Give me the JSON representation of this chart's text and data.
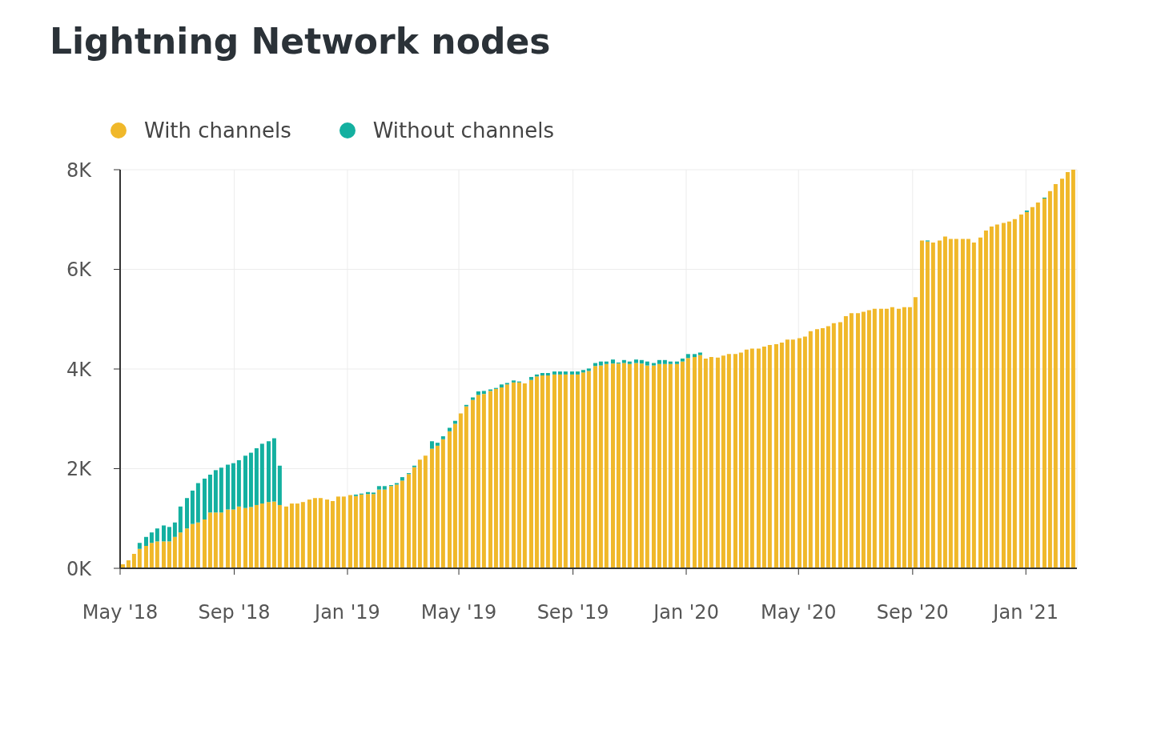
{
  "chart_data": {
    "type": "bar",
    "title": "Lightning Network nodes",
    "stacked": true,
    "grid": true,
    "legend": "top left",
    "x": [
      "2018-05-04",
      "2018-05-10",
      "2018-05-16",
      "2018-05-22",
      "2018-05-29",
      "2018-06-04",
      "2018-06-10",
      "2018-06-17",
      "2018-06-23",
      "2018-06-29",
      "2018-07-05",
      "2018-07-12",
      "2018-07-18",
      "2018-07-24",
      "2018-07-31",
      "2018-08-06",
      "2018-08-12",
      "2018-08-18",
      "2018-08-25",
      "2018-08-31",
      "2018-09-06",
      "2018-09-13",
      "2018-09-19",
      "2018-09-25",
      "2018-10-01",
      "2018-10-08",
      "2018-10-14",
      "2018-10-20",
      "2018-10-27",
      "2018-11-02",
      "2018-11-08",
      "2018-11-14",
      "2018-11-21",
      "2018-11-27",
      "2018-12-03",
      "2018-12-10",
      "2018-12-16",
      "2018-12-22",
      "2018-12-28",
      "2019-01-04",
      "2019-01-10",
      "2019-01-16",
      "2019-01-23",
      "2019-01-29",
      "2019-02-04",
      "2019-02-10",
      "2019-02-17",
      "2019-02-23",
      "2019-03-01",
      "2019-03-08",
      "2019-03-14",
      "2019-03-20",
      "2019-03-26",
      "2019-04-02",
      "2019-04-08",
      "2019-04-14",
      "2019-04-21",
      "2019-04-27",
      "2019-05-03",
      "2019-05-09",
      "2019-05-16",
      "2019-05-22",
      "2019-05-28",
      "2019-06-04",
      "2019-06-10",
      "2019-06-16",
      "2019-06-22",
      "2019-06-29",
      "2019-07-05",
      "2019-07-11",
      "2019-07-18",
      "2019-07-24",
      "2019-07-30",
      "2019-08-05",
      "2019-08-12",
      "2019-08-18",
      "2019-08-24",
      "2019-08-31",
      "2019-09-06",
      "2019-09-12",
      "2019-09-18",
      "2019-09-25",
      "2019-10-01",
      "2019-10-07",
      "2019-10-14",
      "2019-10-20",
      "2019-10-26",
      "2019-11-01",
      "2019-11-08",
      "2019-11-14",
      "2019-11-20",
      "2019-11-27",
      "2019-12-03",
      "2019-12-09",
      "2019-12-15",
      "2019-12-22",
      "2019-12-28",
      "2020-01-03",
      "2020-01-10",
      "2020-01-16",
      "2020-01-22",
      "2020-01-28",
      "2020-02-04",
      "2020-02-10",
      "2020-02-16",
      "2020-02-23",
      "2020-02-29",
      "2020-03-06",
      "2020-03-12",
      "2020-03-19",
      "2020-03-25",
      "2020-03-31",
      "2020-04-07",
      "2020-04-13",
      "2020-04-19",
      "2020-04-25",
      "2020-05-02",
      "2020-05-08",
      "2020-05-14",
      "2020-05-21",
      "2020-05-27",
      "2020-06-02",
      "2020-06-08",
      "2020-06-15",
      "2020-06-21",
      "2020-06-27",
      "2020-07-04",
      "2020-07-10",
      "2020-07-16",
      "2020-07-22",
      "2020-07-29",
      "2020-08-04",
      "2020-08-10",
      "2020-08-17",
      "2020-08-23",
      "2020-08-29",
      "2020-09-04",
      "2020-09-11",
      "2020-09-17",
      "2020-09-23",
      "2020-09-30",
      "2020-10-06",
      "2020-10-12",
      "2020-10-18",
      "2020-10-25",
      "2020-10-31",
      "2020-11-06",
      "2020-11-13",
      "2020-11-19",
      "2020-11-25",
      "2020-12-01",
      "2020-12-08",
      "2020-12-14",
      "2020-12-20",
      "2020-12-27",
      "2021-01-02",
      "2021-01-08",
      "2021-01-14",
      "2021-01-21",
      "2021-01-27",
      "2021-02-02",
      "2021-02-09",
      "2021-02-15",
      "2021-02-21"
    ],
    "xlim": [
      "2018-05-01",
      "2021-02-25"
    ],
    "xticks": [
      {
        "value": "2018-05-01",
        "label": "May '18"
      },
      {
        "value": "2018-09-01",
        "label": "Sep '18"
      },
      {
        "value": "2019-01-01",
        "label": "Jan '19"
      },
      {
        "value": "2019-05-01",
        "label": "May '19"
      },
      {
        "value": "2019-09-01",
        "label": "Sep '19"
      },
      {
        "value": "2020-01-01",
        "label": "Jan '20"
      },
      {
        "value": "2020-05-01",
        "label": "May '20"
      },
      {
        "value": "2020-09-01",
        "label": "Sep '20"
      },
      {
        "value": "2021-01-01",
        "label": "Jan '21"
      }
    ],
    "ylim": [
      0,
      8
    ],
    "yticks": [
      {
        "value": 0,
        "label": "0K"
      },
      {
        "value": 2,
        "label": "2K"
      },
      {
        "value": 4,
        "label": "4K"
      },
      {
        "value": 6,
        "label": "6K"
      },
      {
        "value": 8,
        "label": "8K"
      }
    ],
    "series": [
      {
        "name": "With channels",
        "color": "#f0b82a",
        "values": [
          0.08,
          0.16,
          0.29,
          0.39,
          0.45,
          0.51,
          0.54,
          0.54,
          0.54,
          0.63,
          0.72,
          0.8,
          0.89,
          0.92,
          0.98,
          1.12,
          1.12,
          1.12,
          1.18,
          1.18,
          1.24,
          1.21,
          1.23,
          1.27,
          1.3,
          1.33,
          1.34,
          1.27,
          1.24,
          1.3,
          1.3,
          1.33,
          1.38,
          1.41,
          1.41,
          1.38,
          1.35,
          1.44,
          1.44,
          1.47,
          1.45,
          1.48,
          1.49,
          1.49,
          1.58,
          1.58,
          1.65,
          1.68,
          1.76,
          1.89,
          2.03,
          2.18,
          2.26,
          2.4,
          2.46,
          2.59,
          2.75,
          2.9,
          3.11,
          3.25,
          3.38,
          3.48,
          3.5,
          3.56,
          3.6,
          3.63,
          3.69,
          3.73,
          3.73,
          3.71,
          3.78,
          3.85,
          3.87,
          3.87,
          3.89,
          3.89,
          3.89,
          3.89,
          3.89,
          3.93,
          3.96,
          4.06,
          4.07,
          4.1,
          4.11,
          4.11,
          4.12,
          4.1,
          4.12,
          4.11,
          4.07,
          4.07,
          4.1,
          4.1,
          4.1,
          4.1,
          4.15,
          4.22,
          4.24,
          4.28,
          4.21,
          4.24,
          4.23,
          4.27,
          4.3,
          4.3,
          4.33,
          4.39,
          4.41,
          4.41,
          4.45,
          4.48,
          4.5,
          4.53,
          4.59,
          4.59,
          4.62,
          4.65,
          4.76,
          4.8,
          4.82,
          4.86,
          4.92,
          4.94,
          5.06,
          5.12,
          5.12,
          5.15,
          5.18,
          5.21,
          5.21,
          5.21,
          5.24,
          5.21,
          5.24,
          5.24,
          5.44,
          6.58,
          6.56,
          6.54,
          6.58,
          6.66,
          6.61,
          6.61,
          6.61,
          6.61,
          6.54,
          6.64,
          6.78,
          6.86,
          6.9,
          6.93,
          6.96,
          7.01,
          7.1,
          7.15,
          7.25,
          7.34,
          7.42,
          7.57,
          7.71,
          7.82,
          7.95,
          8.0
        ]
      },
      {
        "name": "Without channels",
        "color": "#14b0a0",
        "values": [
          null,
          null,
          null,
          0.12,
          0.18,
          0.21,
          0.26,
          0.32,
          0.29,
          0.29,
          0.52,
          0.61,
          0.67,
          0.79,
          0.82,
          0.76,
          0.85,
          0.9,
          0.9,
          0.93,
          0.93,
          1.05,
          1.09,
          1.14,
          1.2,
          1.22,
          1.27,
          0.79,
          null,
          null,
          null,
          null,
          null,
          null,
          null,
          null,
          null,
          null,
          null,
          null,
          0.03,
          0.02,
          0.04,
          0.03,
          0.07,
          0.07,
          0.02,
          0.03,
          0.07,
          0.02,
          0.03,
          null,
          null,
          0.15,
          0.06,
          0.06,
          0.07,
          0.06,
          null,
          0.03,
          0.05,
          0.07,
          0.06,
          0.03,
          0.02,
          0.06,
          0.03,
          0.04,
          0.02,
          null,
          0.06,
          0.04,
          0.05,
          0.05,
          0.06,
          0.06,
          0.06,
          0.06,
          0.06,
          0.05,
          0.05,
          0.06,
          0.08,
          0.05,
          0.08,
          0.02,
          0.06,
          0.05,
          0.07,
          0.07,
          0.08,
          0.05,
          0.08,
          0.08,
          0.05,
          0.05,
          0.06,
          0.08,
          0.06,
          0.05,
          null,
          null,
          null,
          null,
          null,
          null,
          null,
          null,
          null,
          null,
          null,
          null,
          null,
          null,
          null,
          null,
          null,
          null,
          null,
          null,
          null,
          null,
          null,
          null,
          null,
          null,
          null,
          null,
          null,
          null,
          null,
          null,
          null,
          null,
          null,
          null,
          null,
          null,
          0.02,
          null,
          null,
          null,
          null,
          null,
          null,
          null,
          null,
          null,
          null,
          null,
          null,
          null,
          null,
          null,
          null,
          0.03,
          null,
          null,
          0.02,
          null,
          null,
          null,
          null,
          null
        ]
      }
    ]
  }
}
